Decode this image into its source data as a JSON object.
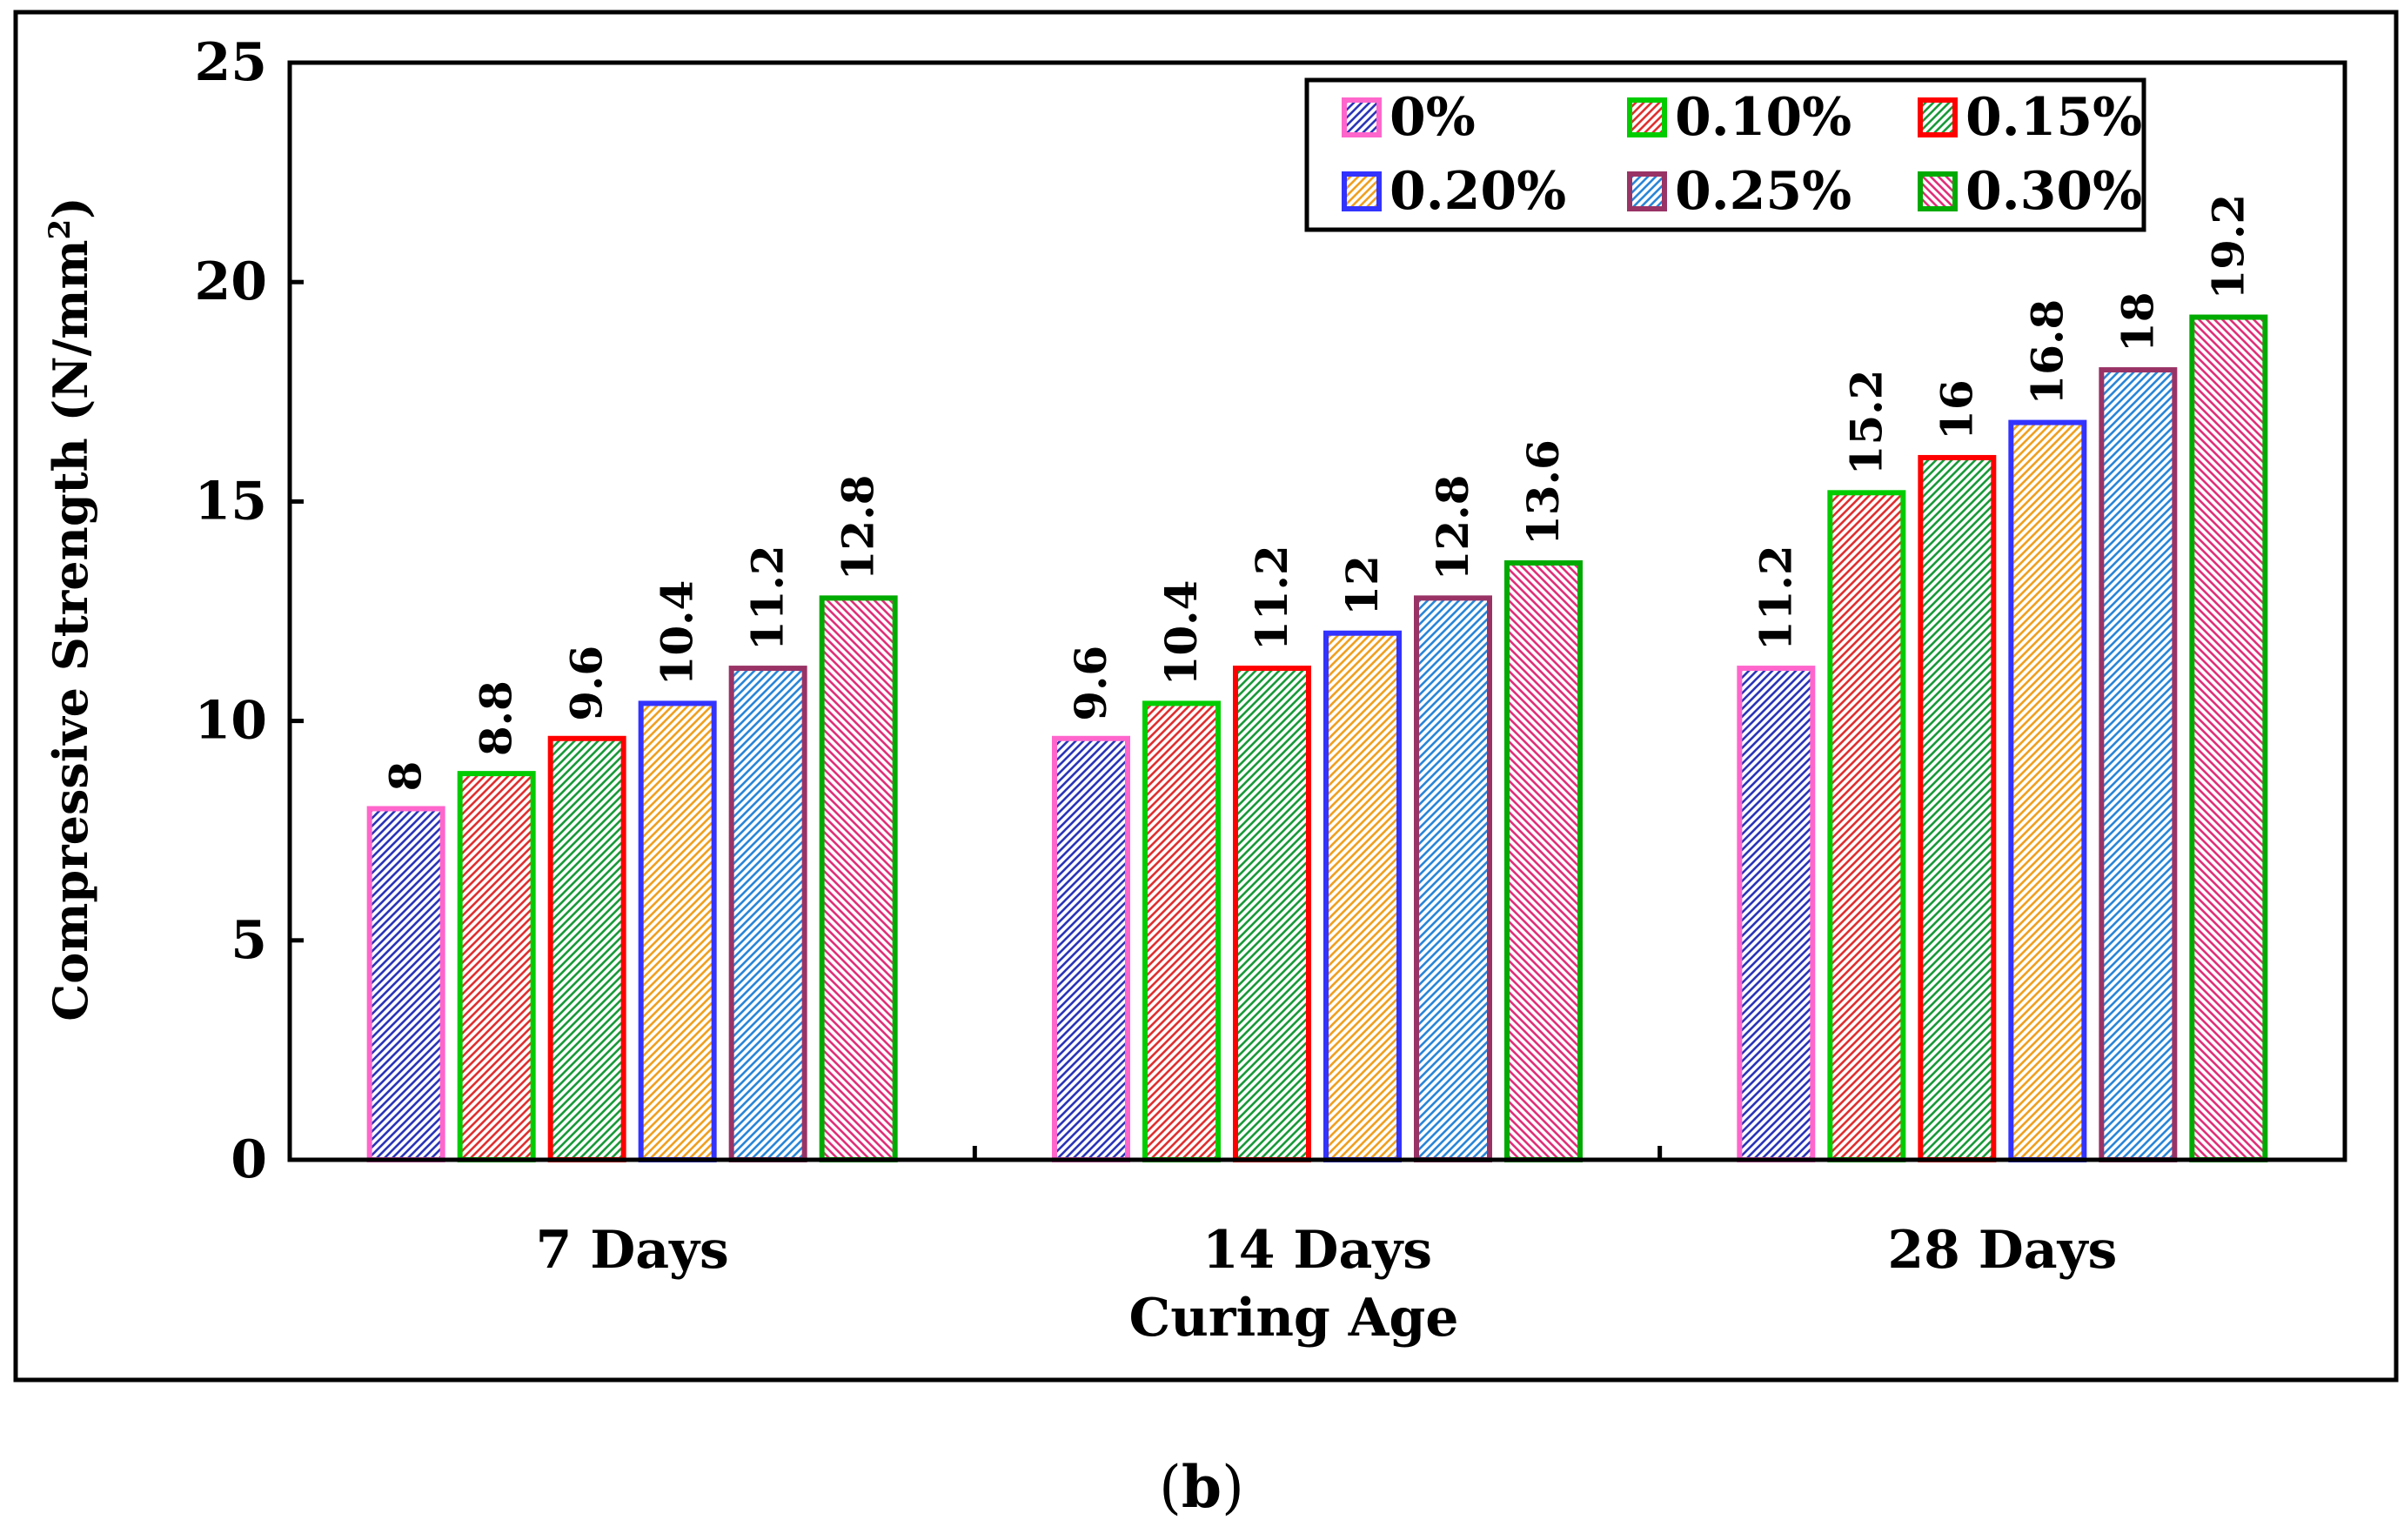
{
  "caption": "(b)",
  "caption_parts": {
    "open": "(",
    "letter": "b",
    "close": ")"
  },
  "chart_data": {
    "type": "bar",
    "title": "",
    "xlabel": "Curing Age",
    "ylabel": "Compressive Strength (N/mm",
    "ylabel_superscript": "2",
    "ylabel_suffix": ")",
    "ylim": [
      0,
      25
    ],
    "yticks": [
      0,
      5,
      10,
      15,
      20,
      25
    ],
    "categories": [
      "7 Days",
      "14 Days",
      "28 Days"
    ],
    "legend_position": "top-right",
    "series": [
      {
        "name": "0%",
        "values": [
          8,
          9.6,
          11.2
        ],
        "border": "#ff66cc",
        "hatch": "#2b35b8",
        "direction": "right"
      },
      {
        "name": "0.10%",
        "values": [
          8.8,
          10.4,
          15.2
        ],
        "border": "#00cc00",
        "hatch": "#e03030",
        "direction": "right"
      },
      {
        "name": "0.15%",
        "values": [
          9.6,
          11.2,
          16
        ],
        "border": "#ff0000",
        "hatch": "#1a9a3a",
        "direction": "right"
      },
      {
        "name": "0.20%",
        "values": [
          10.4,
          12,
          16.8
        ],
        "border": "#3333ff",
        "hatch": "#f0a020",
        "direction": "right"
      },
      {
        "name": "0.25%",
        "values": [
          11.2,
          12.8,
          18
        ],
        "border": "#993366",
        "hatch": "#2a86d8",
        "direction": "right"
      },
      {
        "name": "0.30%",
        "values": [
          12.8,
          13.6,
          19.2
        ],
        "border": "#00aa00",
        "hatch": "#e0307a",
        "direction": "left"
      }
    ]
  }
}
